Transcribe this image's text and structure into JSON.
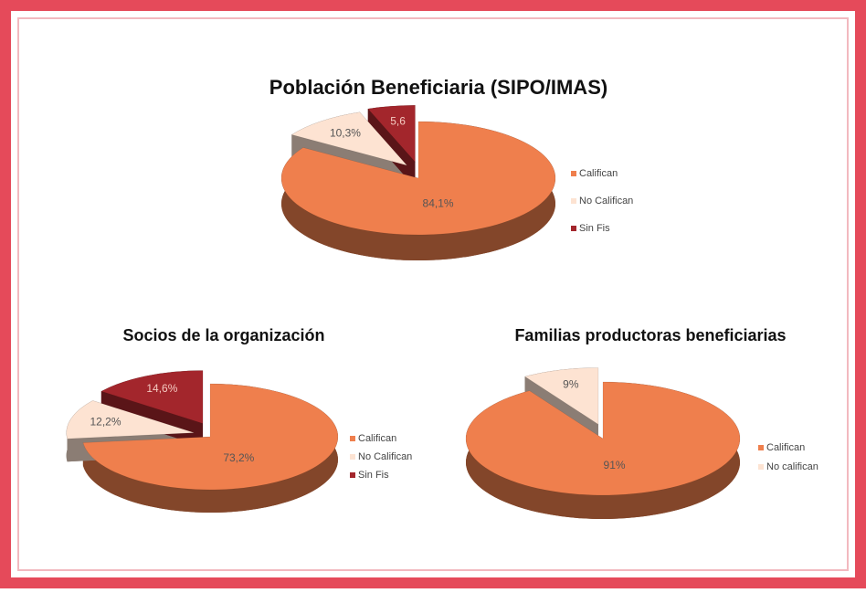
{
  "chart_data": [
    {
      "type": "pie",
      "title": "Población Beneficiaria (SIPO/IMAS)",
      "categories": [
        "Califican",
        "No Califican",
        "Sin Fis"
      ],
      "values": [
        84.1,
        10.3,
        5.6
      ],
      "value_labels": [
        "84,1%",
        "10,3%",
        "5,6"
      ],
      "colors": [
        "#ef7f4d",
        "#fde3d2",
        "#a3262c"
      ]
    },
    {
      "type": "pie",
      "title": "Socios de la organización",
      "categories": [
        "Califican",
        "No Califican",
        "Sin Fis"
      ],
      "values": [
        73.2,
        12.2,
        14.6
      ],
      "value_labels": [
        "73,2%",
        "12,2%",
        "14,6%"
      ],
      "colors": [
        "#ef7f4d",
        "#fde3d2",
        "#a3262c"
      ]
    },
    {
      "type": "pie",
      "title": "Familias productoras beneficiarias",
      "categories": [
        "Califican",
        "No califican"
      ],
      "values": [
        91,
        9
      ],
      "value_labels": [
        "91%",
        "9%"
      ],
      "colors": [
        "#ef7f4d",
        "#fde3d2"
      ]
    }
  ]
}
